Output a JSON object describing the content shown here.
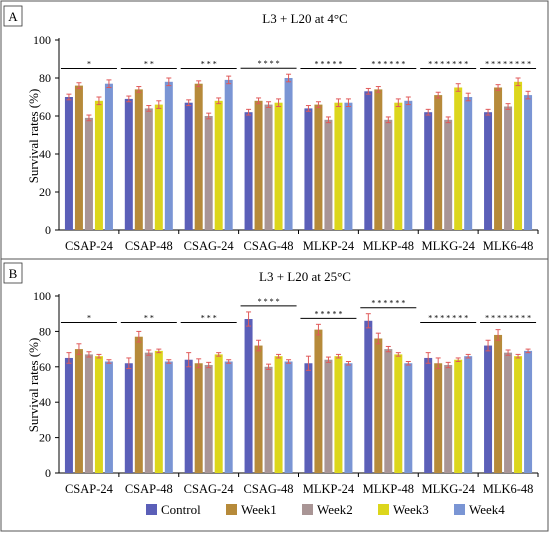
{
  "chart_data": [
    {
      "type": "bar",
      "panel_label": "A",
      "title": "L3 + L20 at 4°C",
      "ylabel": "Survival rates (%)",
      "xlabel": "",
      "ylim": [
        0,
        100
      ],
      "yticks": [
        0,
        20,
        40,
        60,
        80,
        100
      ],
      "categories": [
        "CSAP-24",
        "CSAP-48",
        "CSAG-24",
        "CSAG-48",
        "MLKP-24",
        "MLKP-48",
        "MLKG-24",
        "MLK6-48"
      ],
      "series": [
        {
          "name": "Control",
          "values": [
            70,
            69,
            67,
            62,
            64,
            73,
            62,
            62
          ],
          "errors": [
            1.5,
            1.5,
            1.5,
            1.5,
            1.5,
            1.5,
            1.5,
            1.5
          ]
        },
        {
          "name": "Week1",
          "values": [
            76,
            74,
            77,
            68,
            66,
            74,
            71,
            75
          ],
          "errors": [
            1.5,
            1.5,
            1.5,
            1.5,
            1.5,
            1.5,
            1.5,
            1.5
          ]
        },
        {
          "name": "Week2",
          "values": [
            59,
            64,
            60,
            66,
            58,
            58,
            58,
            65
          ],
          "errors": [
            1.5,
            1.5,
            1.5,
            1.5,
            1.5,
            1.5,
            1.5,
            1.5
          ]
        },
        {
          "name": "Week3",
          "values": [
            68,
            66,
            68,
            67,
            67,
            67,
            75,
            78
          ],
          "errors": [
            2,
            2,
            1.5,
            2,
            2,
            2,
            2,
            2
          ]
        },
        {
          "name": "Week4",
          "values": [
            77,
            78,
            79,
            80,
            67,
            68,
            70,
            71
          ],
          "errors": [
            2,
            2,
            2,
            2,
            2,
            2,
            2,
            2
          ]
        }
      ],
      "significance": [
        "*",
        "* *",
        "* * *",
        "* * * *",
        "* * * * *",
        "* * * * * *",
        "* * * * * * *",
        "* * * * * * * *"
      ],
      "grid": false,
      "legend": "none"
    },
    {
      "type": "bar",
      "panel_label": "B",
      "title": "L3 + L20 at 25°C",
      "ylabel": "Survival rates (%)",
      "xlabel": "",
      "ylim": [
        0,
        100
      ],
      "yticks": [
        0,
        20,
        40,
        60,
        80,
        100
      ],
      "categories": [
        "CSAP-24",
        "CSAP-48",
        "CSAG-24",
        "CSAG-48",
        "MLKP-24",
        "MLKP-48",
        "MLKG-24",
        "MLK6-48"
      ],
      "series": [
        {
          "name": "Control",
          "values": [
            65,
            62,
            64,
            87,
            62,
            86,
            65,
            72
          ],
          "errors": [
            3,
            3,
            4,
            4,
            4,
            4,
            3,
            3
          ]
        },
        {
          "name": "Week1",
          "values": [
            70,
            77,
            62,
            72,
            81,
            76,
            62,
            78
          ],
          "errors": [
            3,
            3,
            2.5,
            3,
            3,
            3,
            3,
            3
          ]
        },
        {
          "name": "Week2",
          "values": [
            67,
            68,
            61,
            60,
            64,
            70,
            61,
            68
          ],
          "errors": [
            1.5,
            1.5,
            1.5,
            1.5,
            1.5,
            1.5,
            1.5,
            1.5
          ]
        },
        {
          "name": "Week3",
          "values": [
            66,
            69,
            67,
            66,
            66,
            67,
            64,
            66
          ],
          "errors": [
            1,
            1,
            1,
            1,
            1,
            1,
            1,
            1
          ]
        },
        {
          "name": "Week4",
          "values": [
            63,
            63,
            63,
            63,
            62,
            62,
            66,
            69
          ],
          "errors": [
            1,
            1,
            1,
            1,
            1,
            1,
            1,
            1
          ]
        }
      ],
      "significance": [
        "*",
        "* *",
        "* * *",
        "* * * *",
        "* * * * *",
        "* * * * * *",
        "* * * * * * *",
        "* * * * * * * *"
      ],
      "grid": false,
      "legend": "bottom"
    }
  ],
  "legend": {
    "items": [
      {
        "name": "Control",
        "color": "#5b5fb8"
      },
      {
        "name": "Week1",
        "color": "#b68a3a"
      },
      {
        "name": "Week2",
        "color": "#a99595"
      },
      {
        "name": "Week3",
        "color": "#dcd61c"
      },
      {
        "name": "Week4",
        "color": "#7a95d4"
      }
    ]
  },
  "colors": {
    "Control": "#5b5fb8",
    "Week1": "#b68a3a",
    "Week2": "#a99595",
    "Week3": "#dcd61c",
    "Week4": "#7a95d4",
    "error_bar": "#e05a5a"
  }
}
